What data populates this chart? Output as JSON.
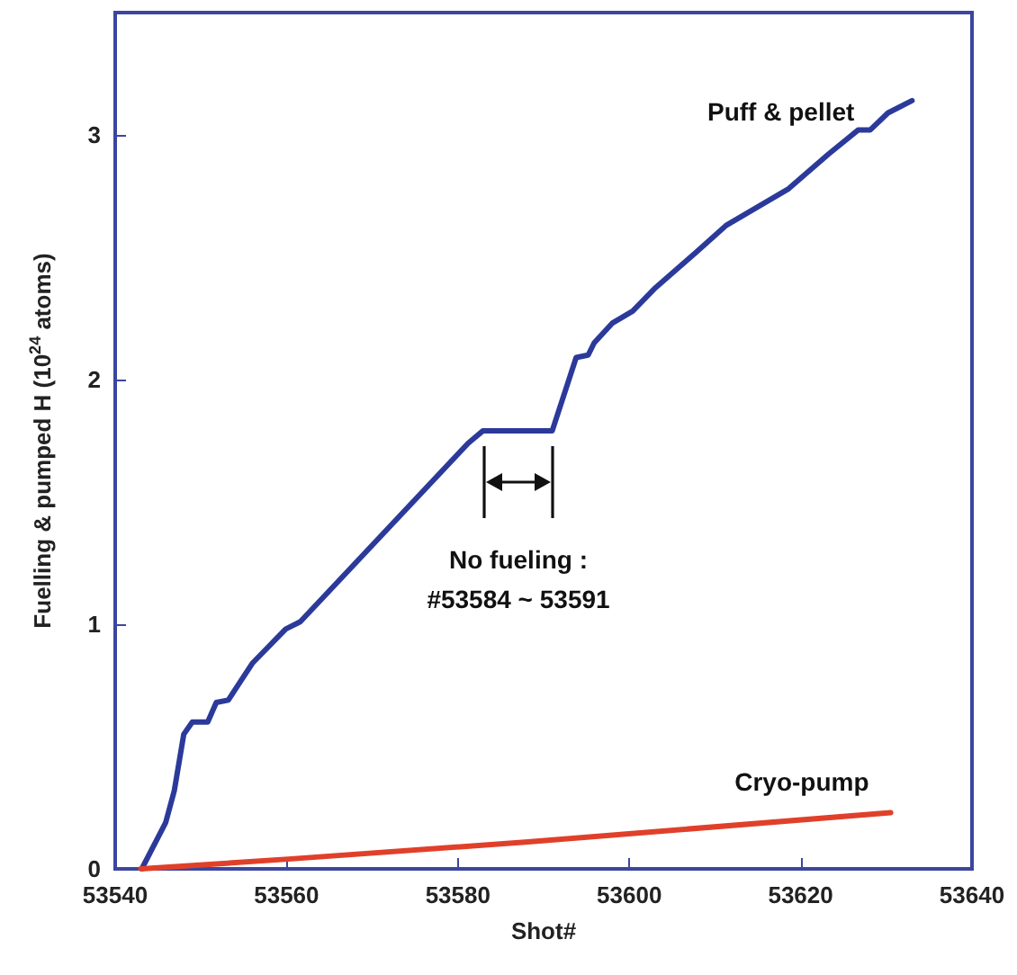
{
  "chart_data": {
    "type": "line",
    "xlabel": "Shot#",
    "ylabel": "Fuelling & pumped H (10$^{24}$ atoms)",
    "xlim": [
      53540,
      53640
    ],
    "xticks": [
      53540,
      53560,
      53580,
      53600,
      53620,
      53640
    ],
    "ylim": [
      0,
      3.5
    ],
    "yticks": [
      0,
      1,
      2,
      3
    ],
    "grid": false,
    "legend": false,
    "marker": "none",
    "line_style": "solid",
    "annotations": [
      "No fueling :\n#53584 ~ 53591"
    ],
    "series": [
      {
        "name": "Puff & pellet",
        "color": "#2b3a9a",
        "x": [
          53543.1,
          53545.9,
          53546.9,
          53548.0,
          53549.0,
          53550.8,
          53551.8,
          53553.2,
          53556.0,
          53559.9,
          53561.6,
          53581.2,
          53582.9,
          53591.0,
          53593.8,
          53595.2,
          53595.9,
          53598.0,
          53600.4,
          53602.9,
          53607.8,
          53611.3,
          53618.6,
          53623.2,
          53626.7,
          53628.1,
          53630.2,
          53633.0
        ],
        "values": [
          0,
          0.19,
          0.32,
          0.55,
          0.6,
          0.6,
          0.68,
          0.69,
          0.84,
          0.98,
          1.01,
          1.74,
          1.79,
          1.79,
          2.09,
          2.1,
          2.15,
          2.23,
          2.28,
          2.37,
          2.52,
          2.63,
          2.78,
          2.92,
          3.02,
          3.02,
          3.09,
          3.14
        ]
      },
      {
        "name": "Cryo-pump",
        "color": "#e0402a",
        "x": [
          53543,
          53560.2,
          53588.2,
          53630.5
        ],
        "values": [
          0,
          0.04,
          0.11,
          0.23
        ]
      }
    ]
  }
}
